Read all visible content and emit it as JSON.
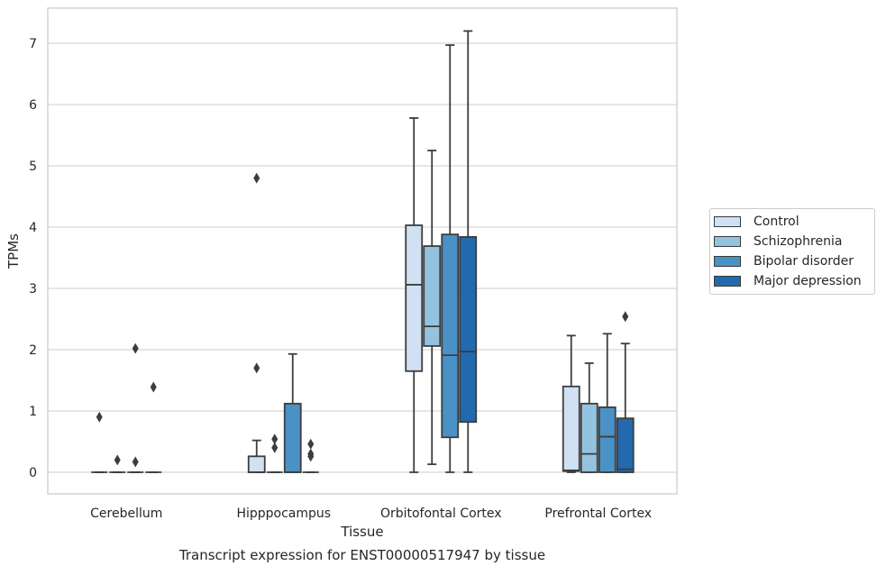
{
  "chart_data": {
    "type": "box",
    "caption": "Transcript expression for ENST00000517947 by tissue",
    "xlabel": "Tissue",
    "ylabel": "TPMs",
    "ylim": [
      -0.35,
      7.6
    ],
    "yticks": [
      0,
      1,
      2,
      3,
      4,
      5,
      6,
      7
    ],
    "grid": "horizontal",
    "legend_position": "right",
    "categories": [
      "Cerebellum",
      "Hipppocampus",
      "Orbitofontal Cortex",
      "Prefrontal Cortex"
    ],
    "series": [
      {
        "name": "Control",
        "color": "#cfe1f2",
        "boxes": [
          {
            "min": 0,
            "q1": 0,
            "median": 0,
            "q3": 0,
            "max": 0,
            "outliers": [
              0.9
            ]
          },
          {
            "min": 0,
            "q1": 0,
            "median": 0,
            "q3": 0.26,
            "max": 0.52,
            "outliers": [
              1.7,
              4.8
            ]
          },
          {
            "min": 0,
            "q1": 1.65,
            "median": 3.06,
            "q3": 4.03,
            "max": 5.78,
            "outliers": []
          },
          {
            "min": 0,
            "q1": 0.02,
            "median": 0.03,
            "q3": 1.4,
            "max": 2.23,
            "outliers": []
          }
        ]
      },
      {
        "name": "Schizophrenia",
        "color": "#93c3df",
        "boxes": [
          {
            "min": 0,
            "q1": 0,
            "median": 0,
            "q3": 0,
            "max": 0,
            "outliers": [
              0.2
            ]
          },
          {
            "min": 0,
            "q1": 0,
            "median": 0,
            "q3": 0,
            "max": 0,
            "outliers": [
              0.4,
              0.54
            ]
          },
          {
            "min": 0.13,
            "q1": 2.06,
            "median": 2.38,
            "q3": 3.69,
            "max": 5.25,
            "outliers": []
          },
          {
            "min": 0,
            "q1": 0,
            "median": 0.3,
            "q3": 1.12,
            "max": 1.78,
            "outliers": []
          }
        ]
      },
      {
        "name": "Bipolar disorder",
        "color": "#4a91c5",
        "boxes": [
          {
            "min": 0,
            "q1": 0,
            "median": 0,
            "q3": 0,
            "max": 0,
            "outliers": [
              0.17,
              2.02
            ]
          },
          {
            "min": 0,
            "q1": 0,
            "median": 0,
            "q3": 1.12,
            "max": 1.93,
            "outliers": []
          },
          {
            "min": 0,
            "q1": 0.57,
            "median": 1.91,
            "q3": 3.88,
            "max": 6.97,
            "outliers": []
          },
          {
            "min": 0,
            "q1": 0,
            "median": 0.58,
            "q3": 1.06,
            "max": 2.26,
            "outliers": []
          }
        ]
      },
      {
        "name": "Major depression",
        "color": "#2369ad",
        "boxes": [
          {
            "min": 0,
            "q1": 0,
            "median": 0,
            "q3": 0,
            "max": 0,
            "outliers": [
              1.39
            ]
          },
          {
            "min": 0,
            "q1": 0,
            "median": 0,
            "q3": 0,
            "max": 0,
            "outliers": [
              0.26,
              0.3,
              0.46
            ]
          },
          {
            "min": 0,
            "q1": 0.82,
            "median": 1.97,
            "q3": 3.84,
            "max": 7.2,
            "outliers": []
          },
          {
            "min": 0,
            "q1": 0,
            "median": 0.05,
            "q3": 0.88,
            "max": 2.1,
            "outliers": [
              2.54
            ]
          }
        ]
      }
    ]
  }
}
